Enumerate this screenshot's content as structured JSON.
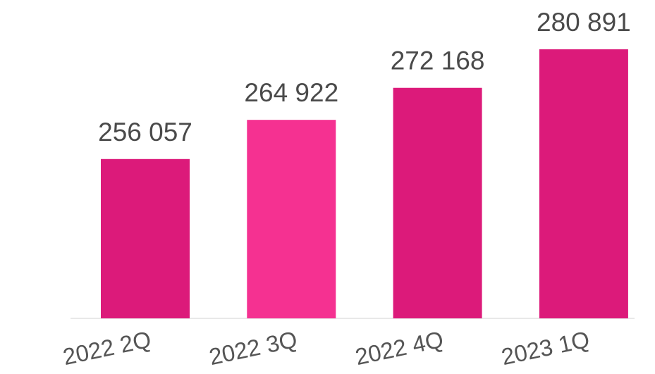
{
  "chart_data": {
    "type": "bar",
    "title": "",
    "xlabel": "",
    "ylabel": "",
    "categories": [
      "2022 2Q",
      "2022 3Q",
      "2022 4Q",
      "2023 1Q"
    ],
    "values": [
      256057,
      264922,
      272168,
      280891
    ],
    "value_labels": [
      "256 057",
      "264 922",
      "272 168",
      "280 891"
    ],
    "bar_colors": [
      "#dc1a7a",
      "#f53191",
      "#dc1a7a",
      "#dc1a7a"
    ],
    "ylim": [
      0,
      280891
    ],
    "grid": false,
    "legend": "none",
    "baseline_color": "#e8e8e8"
  }
}
